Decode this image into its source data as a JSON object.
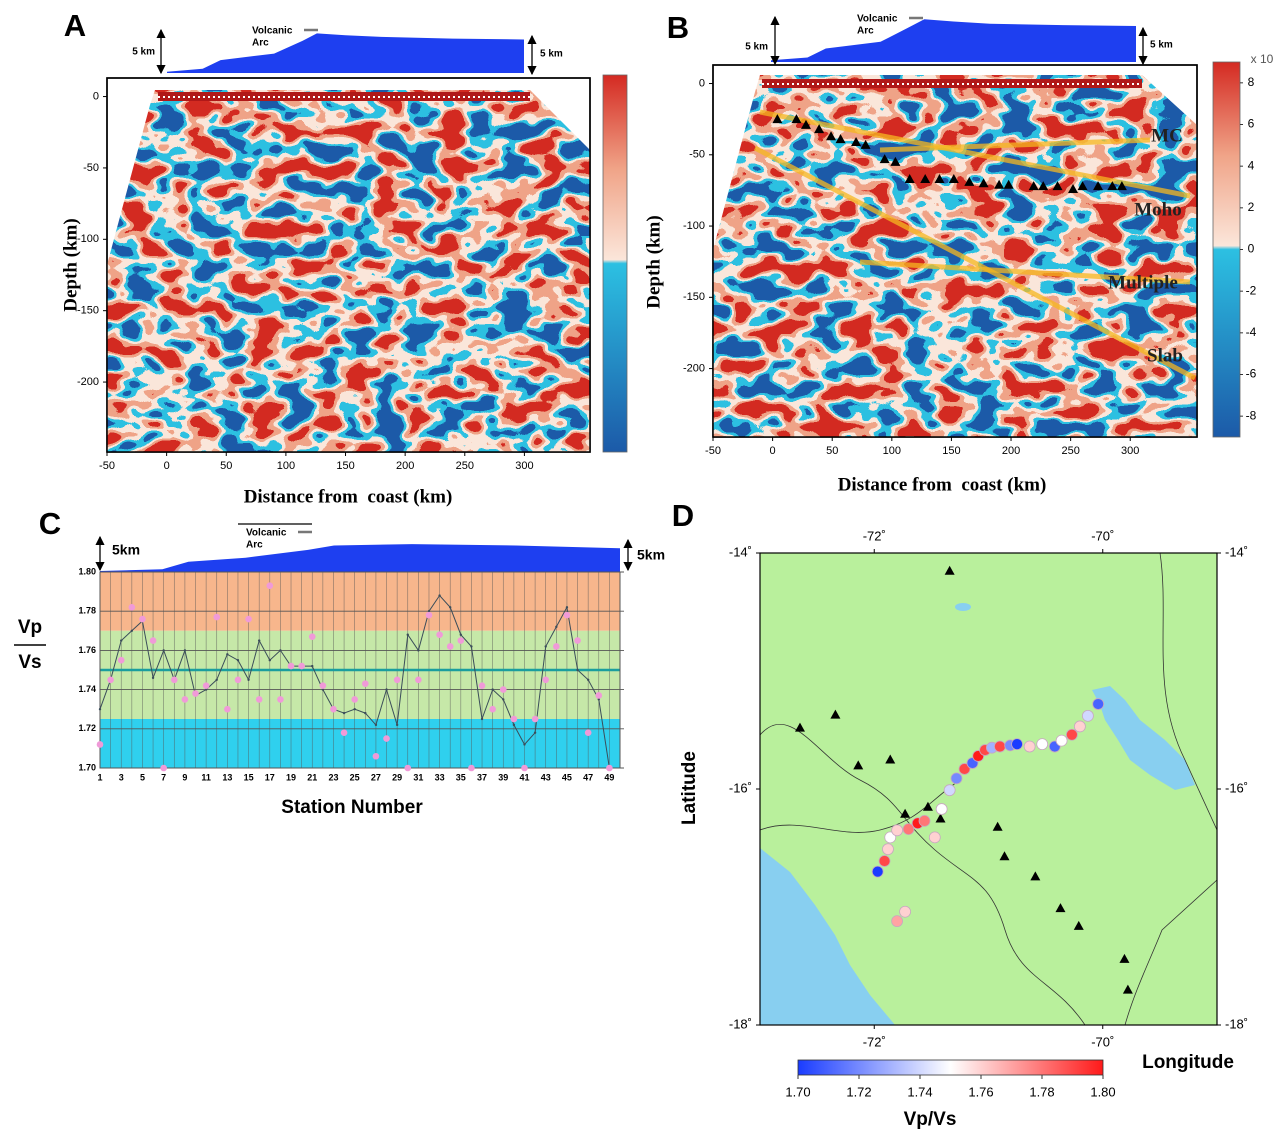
{
  "chart_data": [
    {
      "type": "section",
      "panel": "A",
      "xlabel": "Distance from  coast (km)",
      "ylabel": "Depth (km)",
      "topo_labels": [
        "5 km",
        "5 km"
      ],
      "arc_label": [
        "Volcanic",
        "Arc"
      ],
      "xlim": [
        -50,
        355
      ],
      "ylim": [
        -249,
        13
      ],
      "xticks": [
        -50,
        0,
        50,
        100,
        150,
        200,
        250,
        300
      ],
      "yticks": [
        0,
        -50,
        -100,
        -150,
        -200
      ],
      "colors": [
        "#1c5aa8",
        "#2cc0e2",
        "#fbe6da",
        "#f0a488",
        "#d42a22"
      ]
    },
    {
      "type": "section",
      "panel": "B",
      "xlabel": "Distance from  coast (km)",
      "ylabel": "Depth (km)",
      "topo_labels": [
        "5 km",
        "5 km"
      ],
      "arc_label": [
        "Volcanic",
        "Arc"
      ],
      "colorbar_label": "x 10",
      "annotations": [
        "MC",
        "Moho",
        "Multiple",
        "Slab"
      ],
      "xlim": [
        -50,
        356
      ],
      "ylim": [
        -248,
        13
      ],
      "xticks": [
        -50,
        0,
        50,
        100,
        150,
        200,
        250,
        300
      ],
      "yticks": [
        0,
        -50,
        -100,
        -150,
        -200
      ],
      "clim": [
        -9,
        9
      ],
      "cticks": [
        8,
        6,
        4,
        2,
        0,
        -2,
        -4,
        -6,
        -8
      ],
      "colors": [
        "#1c5aa8",
        "#2cc0e2",
        "#fbe6da",
        "#f0a488",
        "#d42a22"
      ],
      "markers": {
        "color": "#000000",
        "x": [
          4,
          20,
          28,
          39,
          49,
          57,
          70,
          78,
          94,
          103,
          115,
          128,
          140,
          152,
          165,
          177,
          190,
          198,
          219,
          227,
          239,
          252,
          260,
          273,
          285,
          293
        ],
        "y": [
          -25,
          -25,
          -29,
          -32,
          -37,
          -39,
          -41,
          -43,
          -53,
          -55,
          -67,
          -67,
          -67,
          -67,
          -69,
          -70,
          -71,
          -71,
          -72,
          -72,
          -72,
          -74,
          -72,
          -72,
          -72,
          -72
        ]
      }
    },
    {
      "type": "line",
      "panel": "C",
      "xlabel": "Station Number",
      "ylabel": [
        "Vp",
        "Vs"
      ],
      "topo_labels": [
        "5km",
        "5km"
      ],
      "arc_label": [
        "Volcanic",
        "Arc"
      ],
      "xlim": [
        1,
        50
      ],
      "ylim": [
        1.7,
        1.8
      ],
      "xticks": [
        1,
        3,
        5,
        7,
        9,
        11,
        13,
        15,
        17,
        19,
        21,
        23,
        25,
        27,
        29,
        31,
        33,
        35,
        37,
        39,
        41,
        43,
        45,
        47,
        49
      ],
      "yticks": [
        {
          "value": 1.7,
          "label": "1.70"
        },
        {
          "value": 1.72,
          "label": "1.72"
        },
        {
          "value": 1.74,
          "label": "1.74"
        },
        {
          "value": 1.76,
          "label": "1.76"
        },
        {
          "value": 1.78,
          "label": "1.78"
        },
        {
          "value": 1.8,
          "label": "1.80"
        }
      ],
      "bands": [
        {
          "from": 1.77,
          "to": 1.8,
          "color": "#f7b68c"
        },
        {
          "from": 1.725,
          "to": 1.77,
          "color": "#c6e8a8"
        },
        {
          "from": 1.7,
          "to": 1.725,
          "color": "#2fd0ee"
        }
      ],
      "hline": 1.75,
      "hline_color": "#1b9e9e",
      "x": [
        1,
        2,
        3,
        4,
        5,
        6,
        7,
        8,
        9,
        10,
        11,
        12,
        13,
        14,
        15,
        16,
        17,
        18,
        19,
        20,
        21,
        22,
        23,
        24,
        25,
        26,
        27,
        28,
        29,
        30,
        31,
        32,
        33,
        34,
        35,
        36,
        37,
        38,
        39,
        40,
        41,
        42,
        43,
        44,
        45,
        46,
        47,
        48,
        49
      ],
      "series": [
        {
          "color": "#3b4d5a",
          "values": [
            1.73,
            1.745,
            1.765,
            1.77,
            1.775,
            1.746,
            1.76,
            1.745,
            1.76,
            1.737,
            1.74,
            1.745,
            1.758,
            1.755,
            1.745,
            1.765,
            1.755,
            1.76,
            1.752,
            1.752,
            1.752,
            1.74,
            1.73,
            1.728,
            1.73,
            1.728,
            1.722,
            1.74,
            1.722,
            1.768,
            1.76,
            1.78,
            1.788,
            1.782,
            1.768,
            1.762,
            1.725,
            1.74,
            1.735,
            1.722,
            1.712,
            1.718,
            1.762,
            1.772,
            1.782,
            1.75,
            1.745,
            1.735,
            1.7
          ]
        },
        {
          "color": "#f09ad8",
          "marker": "circle",
          "values": [
            1.712,
            1.745,
            1.755,
            1.782,
            1.776,
            1.765,
            1.7,
            1.745,
            1.735,
            1.738,
            1.742,
            1.777,
            1.73,
            1.745,
            1.776,
            1.735,
            1.793,
            1.735,
            1.752,
            1.752,
            1.767,
            1.742,
            1.73,
            1.718,
            1.735,
            1.743,
            1.706,
            1.715,
            1.745,
            1.7,
            1.745,
            1.778,
            1.768,
            1.762,
            1.765,
            1.7,
            1.742,
            1.73,
            1.74,
            1.725,
            1.7,
            1.725,
            1.745,
            1.762,
            1.778,
            1.765,
            1.718,
            1.737,
            1.7
          ]
        }
      ]
    },
    {
      "type": "map",
      "panel": "D",
      "xlabel": "Longitude",
      "ylabel": "Latitude",
      "colorbar_label": "Vp/Vs",
      "xlim": [
        -73,
        -69
      ],
      "ylim": [
        -18,
        -14
      ],
      "xticks": [
        {
          "value": -72,
          "label": "-72˚"
        },
        {
          "value": -70,
          "label": "-70˚"
        }
      ],
      "yticks": [
        {
          "value": -14,
          "label": "-14˚"
        },
        {
          "value": -16,
          "label": "-16˚"
        },
        {
          "value": -18,
          "label": "-18˚"
        }
      ],
      "land_color": "#b9f09c",
      "water_color": "#88cff0",
      "clim": [
        1.7,
        1.8
      ],
      "cticks": [
        {
          "value": 1.7,
          "label": "1.70"
        },
        {
          "value": 1.72,
          "label": "1.72"
        },
        {
          "value": 1.74,
          "label": "1.74"
        },
        {
          "value": 1.76,
          "label": "1.76"
        },
        {
          "value": 1.78,
          "label": "1.78"
        },
        {
          "value": 1.8,
          "label": "1.80"
        }
      ],
      "colors": [
        "#1a3cff",
        "#ffffff",
        "#ff1a1a"
      ],
      "stations": {
        "color": "#000000",
        "lon": [
          -71.34,
          -72.65,
          -72.34,
          -72.14,
          -71.86,
          -71.73,
          -71.53,
          -71.42,
          -70.92,
          -70.86,
          -70.59,
          -70.37,
          -70.21,
          -69.81,
          -69.78
        ],
        "lat": [
          -14.15,
          -15.48,
          -15.37,
          -15.8,
          -15.75,
          -16.21,
          -16.15,
          -16.25,
          -16.32,
          -16.57,
          -16.74,
          -17.01,
          -17.16,
          -17.44,
          -17.7
        ]
      },
      "points": {
        "lon": [
          -71.97,
          -71.91,
          -71.88,
          -71.86,
          -71.8,
          -71.7,
          -71.62,
          -71.56,
          -71.47,
          -71.41,
          -71.34,
          -71.28,
          -71.21,
          -71.14,
          -71.09,
          -71.03,
          -70.97,
          -70.9,
          -70.81,
          -70.75,
          -70.64,
          -70.53,
          -70.42,
          -70.36,
          -70.27,
          -70.2,
          -70.13,
          -70.04,
          -71.73,
          -71.8
        ],
        "lat": [
          -16.7,
          -16.61,
          -16.51,
          -16.41,
          -16.35,
          -16.34,
          -16.29,
          -16.27,
          -16.41,
          -16.17,
          -16.01,
          -15.91,
          -15.83,
          -15.78,
          -15.72,
          -15.67,
          -15.65,
          -15.64,
          -15.63,
          -15.62,
          -15.64,
          -15.62,
          -15.64,
          -15.59,
          -15.54,
          -15.47,
          -15.38,
          -15.28,
          -17.04,
          -17.12
        ],
        "values": [
          1.7,
          1.79,
          1.76,
          1.75,
          1.76,
          1.78,
          1.8,
          1.78,
          1.76,
          1.75,
          1.74,
          1.72,
          1.79,
          1.71,
          1.8,
          1.79,
          1.73,
          1.79,
          1.72,
          1.7,
          1.76,
          1.75,
          1.71,
          1.75,
          1.79,
          1.76,
          1.74,
          1.71,
          1.76,
          1.77
        ]
      }
    }
  ]
}
